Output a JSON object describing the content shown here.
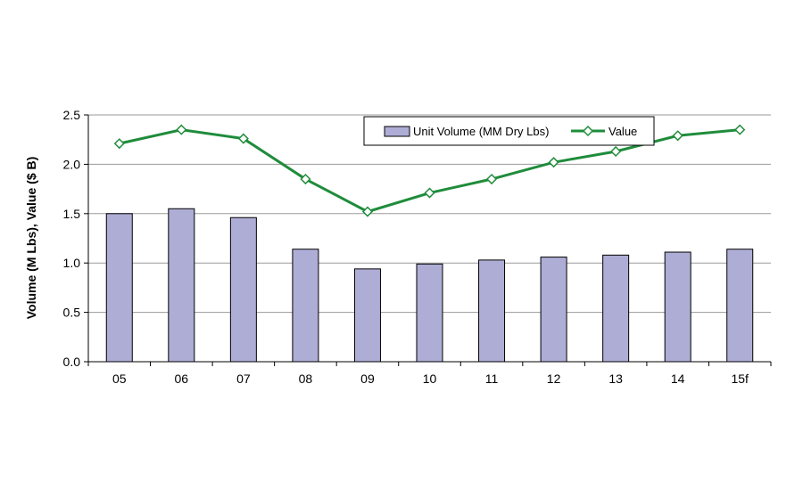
{
  "chart_data": {
    "type": "bar",
    "categories": [
      "05",
      "06",
      "07",
      "08",
      "09",
      "10",
      "11",
      "12",
      "13",
      "14",
      "15f"
    ],
    "series": [
      {
        "name": "Unit Volume (MM Dry Lbs)",
        "type": "bar",
        "color": "#aeadd6",
        "values": [
          1.5,
          1.55,
          1.46,
          1.14,
          0.94,
          0.99,
          1.03,
          1.06,
          1.08,
          1.11,
          1.14
        ]
      },
      {
        "name": "Value",
        "type": "line",
        "color": "#1f8c3b",
        "marker": "diamond",
        "values": [
          2.21,
          2.35,
          2.26,
          1.85,
          1.52,
          1.71,
          1.85,
          2.02,
          2.13,
          2.29,
          2.35
        ]
      }
    ],
    "title": "",
    "xlabel": "",
    "ylabel": "Volume (M Lbs), Value ($ B)",
    "ylim": [
      0,
      2.5
    ],
    "yticks": [
      "0.0",
      "0.5",
      "1.0",
      "1.5",
      "2.0",
      "2.5"
    ],
    "grid": true,
    "legend": "top-right"
  }
}
